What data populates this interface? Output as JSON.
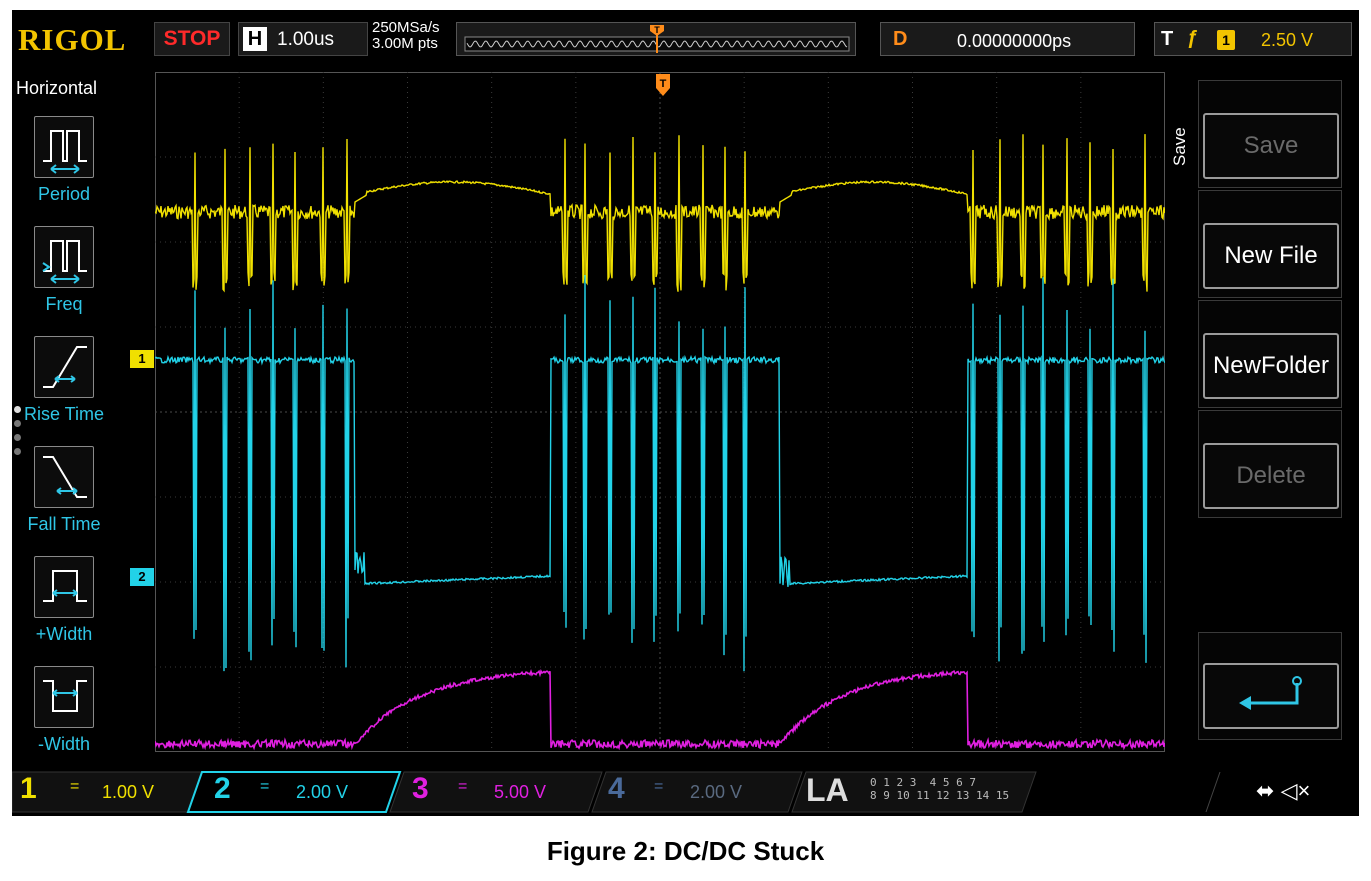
{
  "topbar": {
    "brand": "RIGOL",
    "run_state": "STOP",
    "horizontal_label": "H",
    "timebase": "1.00us",
    "sample_rate": "250MSa/s",
    "memory_depth": "3.00M pts",
    "delay_label": "D",
    "delay_value": "0.00000000ps",
    "trigger_label": "T",
    "trigger_edge": "ƒ",
    "trigger_source": "1",
    "trigger_level": "2.50 V"
  },
  "left_menu": {
    "title": "Horizontal",
    "items": [
      {
        "label": "Period",
        "icon": "period-icon"
      },
      {
        "label": "Freq",
        "icon": "frequency-icon"
      },
      {
        "label": "Rise Time",
        "icon": "rise-time-icon"
      },
      {
        "label": "Fall Time",
        "icon": "fall-time-icon"
      },
      {
        "label": "+Width",
        "icon": "positive-width-icon"
      },
      {
        "label": "-Width",
        "icon": "negative-width-icon"
      }
    ]
  },
  "right_menu": {
    "tab": "Save",
    "buttons": [
      {
        "label": "Save",
        "enabled": false
      },
      {
        "label": "New File",
        "enabled": true
      },
      {
        "label": "NewFolder",
        "enabled": true
      },
      {
        "label": "Delete",
        "enabled": false
      }
    ],
    "return_icon": "return-arrow-icon"
  },
  "channels": [
    {
      "num": "1",
      "coupling": "=",
      "scale": "1.00 V",
      "color": "#f0e000",
      "active": false
    },
    {
      "num": "2",
      "coupling": "=",
      "scale": "2.00 V",
      "color": "#22d2e8",
      "active": true
    },
    {
      "num": "3",
      "coupling": "=",
      "scale": "5.00 V",
      "color": "#e020e0",
      "active": false
    },
    {
      "num": "4",
      "coupling": "=",
      "scale": "2.00 V",
      "color": "#4a6a9a",
      "active": false
    }
  ],
  "markers": {
    "ch1": "1",
    "ch2": "2",
    "trigger": "T"
  },
  "logic_analyzer": {
    "label": "LA",
    "row1": "0 1 2 3  4 5 6 7",
    "row2": "8 9 10 11 12 13 14 15"
  },
  "status_icons": [
    "usb-icon",
    "speaker-muted-icon"
  ],
  "status_text": "⬌ ◁×",
  "caption": "Figure 2: DC/DC Stuck"
}
